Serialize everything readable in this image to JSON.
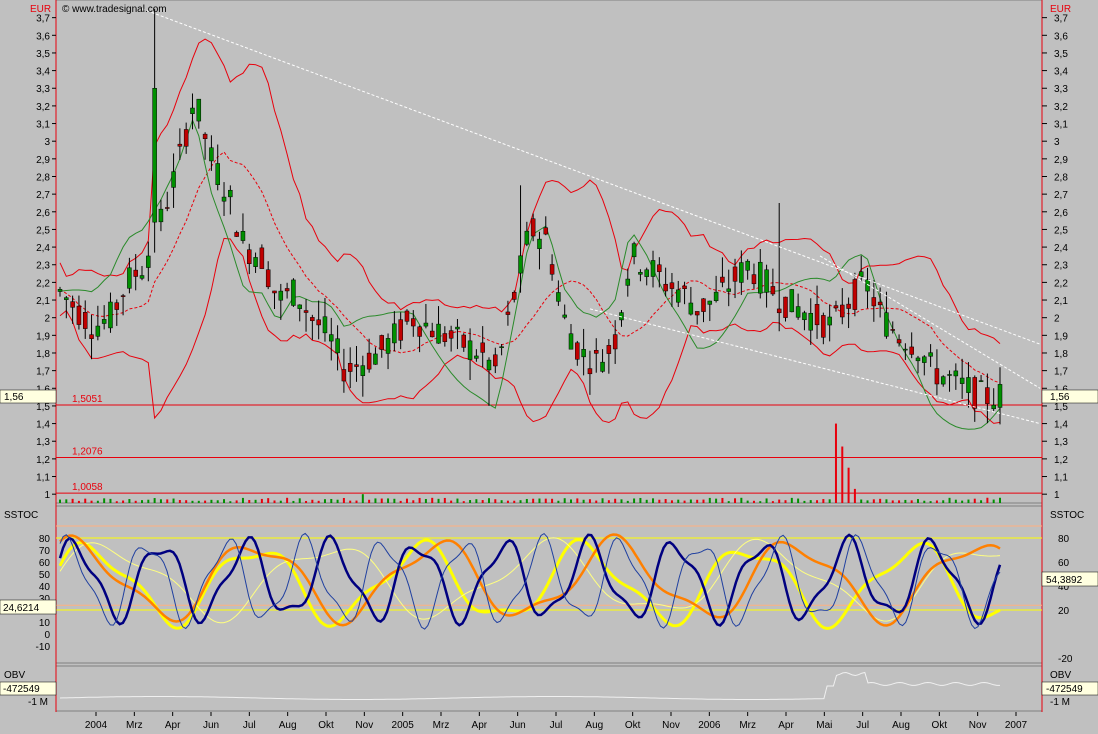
{
  "header": {
    "currency_left": "EUR",
    "currency_right": "EUR",
    "watermark": "© www.tradesignal.com"
  },
  "price_panel": {
    "last_price_label": "1,56",
    "level_lines": [
      {
        "value": 1.5051,
        "label": "1,5051"
      },
      {
        "value": 1.2076,
        "label": "1,2076"
      },
      {
        "value": 1.0058,
        "label": "1,0058"
      }
    ],
    "y_ticks": [
      "3,7",
      "3,6",
      "3,5",
      "3,4",
      "3,3",
      "3,2",
      "3,1",
      "3",
      "2,9",
      "2,8",
      "2,7",
      "2,6",
      "2,5",
      "2,4",
      "2,3",
      "2,2",
      "2,1",
      "2",
      "1,9",
      "1,8",
      "1,7",
      "1,6",
      "1,5",
      "1,4",
      "1,3",
      "1,2",
      "1,1",
      "1"
    ]
  },
  "sstoc_panel": {
    "title_left": "SSTOC",
    "title_right": "SSTOC",
    "left_value_label": "24,6214",
    "right_value_label": "54,3892",
    "left_ticks": [
      "80",
      "70",
      "60",
      "50",
      "40",
      "30",
      "20",
      "10",
      "0",
      "-10"
    ],
    "right_ticks": [
      "80",
      "60",
      "40",
      "20",
      "-20"
    ]
  },
  "obv_panel": {
    "title_left": "OBV",
    "title_right": "OBV",
    "left_value_label": "-472549",
    "right_value_label": "-472549",
    "left_tick": "-1 M",
    "right_tick": "-1 M"
  },
  "x_axis": {
    "labels": [
      "2004",
      "Mrz",
      "Apr",
      "Jun",
      "Jul",
      "Aug",
      "Okt",
      "Nov",
      "2005",
      "Mrz",
      "Apr",
      "Jun",
      "Jul",
      "Aug",
      "Okt",
      "Nov",
      "2006",
      "Mrz",
      "Apr",
      "Mai",
      "Jul",
      "Aug",
      "Okt",
      "Nov",
      "2007"
    ]
  },
  "chart_data": [
    {
      "type": "candlestick",
      "title": "",
      "ylabel": "EUR",
      "ylim": [
        0.95,
        3.8
      ],
      "period": [
        "2004-01",
        "2006-12"
      ],
      "close_approx": [
        2.15,
        2.05,
        1.95,
        2.0,
        2.2,
        2.3,
        2.55,
        2.85,
        3.25,
        2.9,
        2.7,
        2.4,
        2.35,
        2.1,
        2.15,
        2.0,
        1.9,
        1.7,
        1.75,
        1.8,
        1.9,
        2.0,
        1.95,
        1.9,
        1.85,
        1.8,
        1.7,
        2.1,
        2.5,
        2.45,
        2.0,
        1.8,
        1.75,
        1.85,
        2.35,
        2.3,
        2.2,
        2.15,
        2.05,
        2.1,
        2.2,
        2.3,
        2.2,
        2.1,
        2.05,
        2.0,
        1.95,
        2.1,
        2.2,
        2.0,
        1.9,
        1.85,
        1.7,
        1.65,
        1.6,
        1.55,
        1.56
      ],
      "series": [
        {
          "name": "Bollinger upper",
          "color": "#e8000c"
        },
        {
          "name": "Bollinger mid",
          "color": "#e8000c"
        },
        {
          "name": "Bollinger lower",
          "color": "#e8000c"
        },
        {
          "name": "Trend line",
          "color": "#2a8a2a"
        }
      ],
      "volume_peak_month": "2006-08"
    },
    {
      "type": "line",
      "title": "SSTOC",
      "ylim": [
        -20,
        90
      ],
      "series": [
        {
          "name": "SSTOC fast",
          "color": "#000080"
        },
        {
          "name": "SSTOC slow",
          "color": "#ff8000"
        },
        {
          "name": "SSTOC long",
          "color": "#ffff00"
        }
      ]
    },
    {
      "type": "line",
      "title": "OBV",
      "series": [
        {
          "name": "OBV",
          "color": "#f0f0f0"
        }
      ],
      "last_value": -472549
    }
  ]
}
